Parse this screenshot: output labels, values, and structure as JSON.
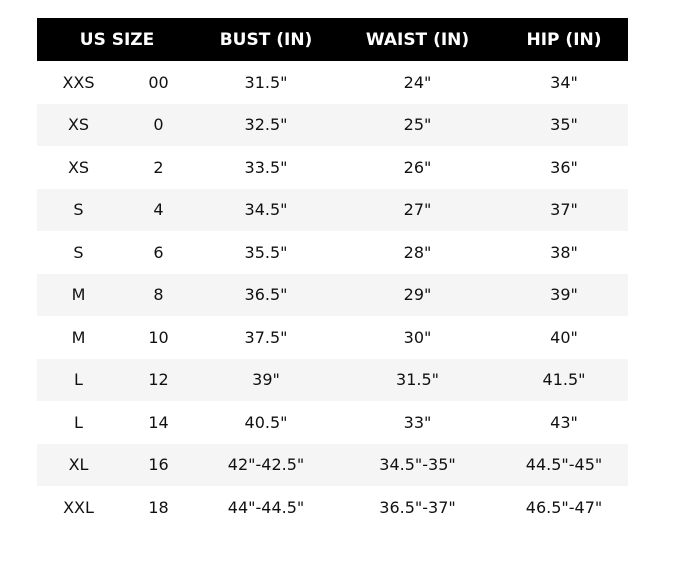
{
  "headers": {
    "size": "US SIZE",
    "bust": "BUST (IN)",
    "waist": "WAIST (IN)",
    "hip": "HIP (IN)"
  },
  "rows": [
    [
      "XXS",
      "00",
      "31.5\"",
      "24\"",
      "34\""
    ],
    [
      "XS",
      "0",
      "32.5\"",
      "25\"",
      "35\""
    ],
    [
      "XS",
      "2",
      "33.5\"",
      "26\"",
      "36\""
    ],
    [
      "S",
      "4",
      "34.5\"",
      "27\"",
      "37\""
    ],
    [
      "S",
      "6",
      "35.5\"",
      "28\"",
      "38\""
    ],
    [
      "M",
      "8",
      "36.5\"",
      "29\"",
      "39\""
    ],
    [
      "M",
      "10",
      "37.5\"",
      "30\"",
      "40\""
    ],
    [
      "L",
      "12",
      "39\"",
      "31.5\"",
      "41.5\""
    ],
    [
      "L",
      "14",
      "40.5\"",
      "33\"",
      "43\""
    ],
    [
      "XL",
      "16",
      "42\"-42.5\"",
      "34.5\"-35\"",
      "44.5\"-45\""
    ],
    [
      "XXL",
      "18",
      "44\"-44.5\"",
      "36.5\"-37\"",
      "46.5\"-47\""
    ]
  ],
  "colors": {
    "header_bg": "#000000",
    "header_text": "#ffffff",
    "stripe": "#f5f5f5"
  }
}
